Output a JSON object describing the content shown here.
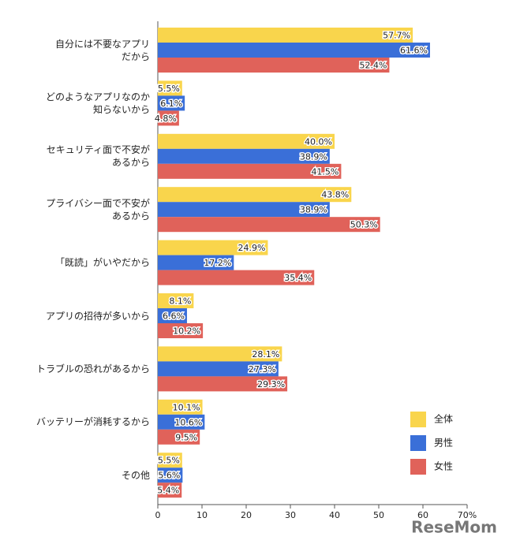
{
  "chart_data": {
    "type": "bar",
    "orientation": "horizontal",
    "categories": [
      "自分には不要なアプリ\nだから",
      "どのようなアプリなのか\n知らないから",
      "セキュリティ面で不安が\nあるから",
      "プライバシー面で不安が\nあるから",
      "「既読」がいやだから",
      "アプリの招待が多いから",
      "トラブルの恐れがあるから",
      "バッテリーが消耗するから",
      "その他"
    ],
    "series": [
      {
        "name": "全体",
        "color": "#f9d54c",
        "values": [
          57.7,
          5.5,
          40.0,
          43.8,
          24.9,
          8.1,
          28.1,
          10.1,
          5.5
        ],
        "value_labels": [
          "57.7%",
          "5.5%",
          "40.0%",
          "43.8%",
          "24.9%",
          "8.1%",
          "28.1%",
          "10.1%",
          "5.5%"
        ]
      },
      {
        "name": "男性",
        "color": "#3a6fd8",
        "values": [
          61.6,
          6.1,
          38.9,
          38.9,
          17.2,
          6.6,
          27.3,
          10.6,
          5.6
        ],
        "value_labels": [
          "61.6%",
          "6.1%",
          "38.9%",
          "38.9%",
          "17.2%",
          "6.6%",
          "27.3%",
          "10.6%",
          "5.6%"
        ]
      },
      {
        "name": "女性",
        "color": "#e0625a",
        "values": [
          52.4,
          4.8,
          41.5,
          50.3,
          35.4,
          10.2,
          29.3,
          9.5,
          5.4
        ],
        "value_labels": [
          "52.4%",
          "4.8%",
          "41.5%",
          "50.3%",
          "35.4%",
          "10.2%",
          "29.3%",
          "9.5%",
          "5.4%"
        ]
      }
    ],
    "xlim": [
      0,
      70
    ],
    "xticks": [
      0,
      10,
      20,
      30,
      40,
      50,
      60,
      {
        "value": 70,
        "label": "70%"
      }
    ],
    "legend": "right",
    "watermark": "ReseMom"
  }
}
